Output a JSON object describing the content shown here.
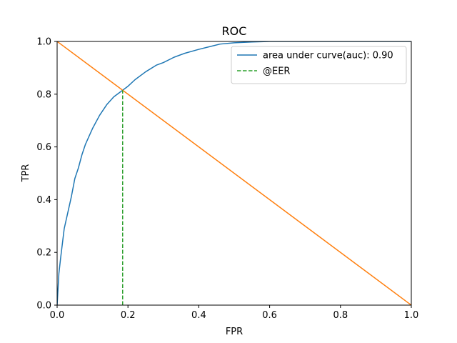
{
  "chart_data": {
    "type": "line",
    "title": "ROC",
    "xlabel": "FPR",
    "ylabel": "TPR",
    "xlim": [
      0,
      1
    ],
    "ylim": [
      0,
      1
    ],
    "xticks": [
      "0.0",
      "0.2",
      "0.4",
      "0.6",
      "0.8",
      "1.0"
    ],
    "yticks": [
      "0.0",
      "0.2",
      "0.4",
      "0.6",
      "0.8",
      "1.0"
    ],
    "grid": false,
    "legend_position": "top-right",
    "series": [
      {
        "name": "area under curve(auc): 0.90",
        "color": "#1f77b4",
        "style": "solid",
        "x": [
          0,
          0.005,
          0.01,
          0.02,
          0.03,
          0.04,
          0.05,
          0.06,
          0.07,
          0.08,
          0.1,
          0.12,
          0.14,
          0.16,
          0.18,
          0.2,
          0.22,
          0.25,
          0.28,
          0.3,
          0.33,
          0.36,
          0.4,
          0.43,
          0.46,
          0.5,
          0.55,
          0.6,
          0.65,
          0.7,
          0.8,
          0.9,
          1.0
        ],
        "y": [
          0,
          0.12,
          0.18,
          0.29,
          0.35,
          0.41,
          0.48,
          0.52,
          0.57,
          0.61,
          0.67,
          0.72,
          0.76,
          0.79,
          0.81,
          0.83,
          0.855,
          0.885,
          0.91,
          0.92,
          0.94,
          0.955,
          0.97,
          0.98,
          0.99,
          0.995,
          0.998,
          1.0,
          1.0,
          1.0,
          1.0,
          1.0,
          1.0
        ]
      },
      {
        "name": "",
        "color": "#ff7f0e",
        "style": "solid",
        "x": [
          0,
          1
        ],
        "y": [
          1,
          0
        ]
      },
      {
        "name": "@EER",
        "color": "#2ca02c",
        "style": "dashed",
        "x": [
          0.185,
          0.185
        ],
        "y": [
          0,
          0.815
        ]
      }
    ]
  }
}
